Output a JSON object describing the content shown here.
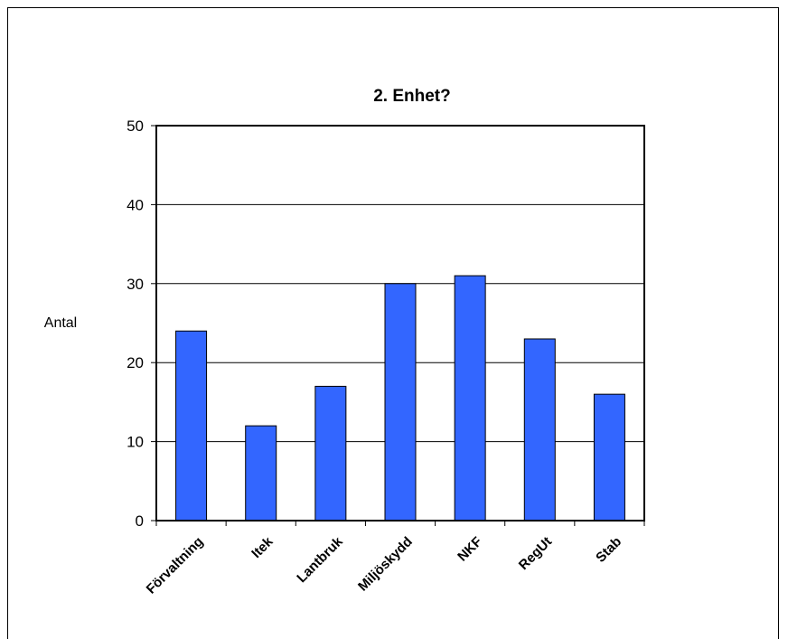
{
  "chart_data": {
    "type": "bar",
    "title": "2. Enhet?",
    "xlabel": "",
    "ylabel": "Antal",
    "categories": [
      "Förvaltning",
      "Itek",
      "Lantbruk",
      "Miljöskydd",
      "NKF",
      "RegUt",
      "Stab"
    ],
    "values": [
      24,
      12,
      17,
      30,
      31,
      23,
      16
    ],
    "ylim": [
      0,
      50
    ],
    "yticks": [
      "0",
      "10",
      "20",
      "30",
      "40",
      "50"
    ],
    "grid": true,
    "legend": "none",
    "bar_color": "#3366ff"
  }
}
